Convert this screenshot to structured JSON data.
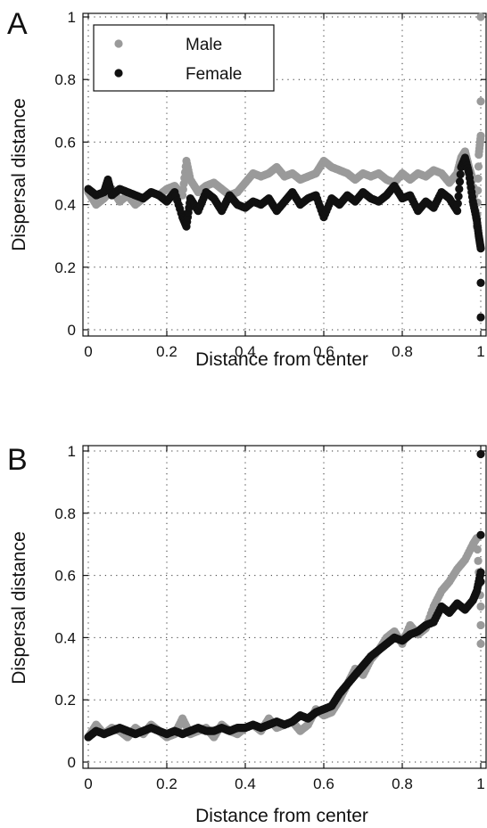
{
  "chart_data": [
    {
      "type": "scatter",
      "panel": "A",
      "xlabel": "Distance from center",
      "ylabel": "Dispersal distance",
      "xlim": [
        0,
        1
      ],
      "ylim": [
        0,
        1
      ],
      "xticks": [
        "0",
        "0.2",
        "0.4",
        "0.6",
        "0.8",
        "1"
      ],
      "yticks": [
        "0",
        "0.2",
        "0.4",
        "0.6",
        "0.8",
        "1"
      ],
      "grid": true,
      "legend_position": "top-left",
      "series": [
        {
          "name": "Male",
          "color": "#9a9a9a",
          "x": [
            0,
            0.02,
            0.04,
            0.06,
            0.08,
            0.1,
            0.12,
            0.14,
            0.16,
            0.18,
            0.2,
            0.22,
            0.24,
            0.25,
            0.26,
            0.28,
            0.3,
            0.32,
            0.34,
            0.36,
            0.38,
            0.4,
            0.42,
            0.44,
            0.46,
            0.48,
            0.5,
            0.52,
            0.54,
            0.56,
            0.58,
            0.6,
            0.62,
            0.64,
            0.66,
            0.68,
            0.7,
            0.72,
            0.74,
            0.76,
            0.78,
            0.8,
            0.82,
            0.84,
            0.86,
            0.88,
            0.9,
            0.92,
            0.94,
            0.95,
            0.96,
            0.97,
            0.98,
            0.99,
            0.995,
            1.0,
            1.0,
            1.0
          ],
          "y": [
            0.44,
            0.4,
            0.42,
            0.45,
            0.41,
            0.43,
            0.4,
            0.42,
            0.44,
            0.43,
            0.45,
            0.46,
            0.43,
            0.54,
            0.48,
            0.44,
            0.46,
            0.47,
            0.45,
            0.43,
            0.44,
            0.47,
            0.5,
            0.49,
            0.5,
            0.52,
            0.49,
            0.5,
            0.48,
            0.49,
            0.5,
            0.54,
            0.52,
            0.51,
            0.5,
            0.48,
            0.5,
            0.49,
            0.5,
            0.48,
            0.47,
            0.5,
            0.48,
            0.5,
            0.49,
            0.51,
            0.5,
            0.47,
            0.5,
            0.55,
            0.57,
            0.52,
            0.48,
            0.33,
            0.56,
            0.62,
            0.73,
            1.0
          ]
        },
        {
          "name": "Female",
          "color": "#111111",
          "x": [
            0,
            0.02,
            0.04,
            0.05,
            0.06,
            0.08,
            0.1,
            0.12,
            0.14,
            0.16,
            0.18,
            0.2,
            0.22,
            0.24,
            0.25,
            0.26,
            0.28,
            0.3,
            0.32,
            0.34,
            0.36,
            0.38,
            0.4,
            0.42,
            0.44,
            0.46,
            0.48,
            0.5,
            0.52,
            0.54,
            0.56,
            0.58,
            0.6,
            0.62,
            0.64,
            0.66,
            0.68,
            0.7,
            0.72,
            0.74,
            0.76,
            0.78,
            0.8,
            0.82,
            0.84,
            0.86,
            0.88,
            0.9,
            0.92,
            0.94,
            0.95,
            0.96,
            0.97,
            0.98,
            0.99,
            0.995,
            1.0,
            1.0,
            1.0
          ],
          "y": [
            0.45,
            0.43,
            0.44,
            0.48,
            0.43,
            0.45,
            0.44,
            0.43,
            0.42,
            0.44,
            0.43,
            0.41,
            0.44,
            0.36,
            0.33,
            0.42,
            0.38,
            0.44,
            0.42,
            0.38,
            0.43,
            0.4,
            0.39,
            0.41,
            0.4,
            0.42,
            0.38,
            0.41,
            0.44,
            0.4,
            0.42,
            0.43,
            0.36,
            0.42,
            0.4,
            0.43,
            0.41,
            0.44,
            0.42,
            0.41,
            0.43,
            0.46,
            0.42,
            0.43,
            0.38,
            0.41,
            0.39,
            0.44,
            0.42,
            0.38,
            0.52,
            0.55,
            0.5,
            0.41,
            0.35,
            0.3,
            0.26,
            0.15,
            0.04
          ]
        }
      ]
    },
    {
      "type": "scatter",
      "panel": "B",
      "xlabel": "Distance from center",
      "ylabel": "Dispersal distance",
      "xlim": [
        0,
        1
      ],
      "ylim": [
        0,
        1
      ],
      "xticks": [
        "0",
        "0.2",
        "0.4",
        "0.6",
        "0.8",
        "1"
      ],
      "yticks": [
        "0",
        "0.2",
        "0.4",
        "0.6",
        "0.8",
        "1"
      ],
      "grid": true,
      "series": [
        {
          "name": "Male",
          "color": "#9a9a9a",
          "x": [
            0,
            0.02,
            0.04,
            0.06,
            0.08,
            0.1,
            0.12,
            0.14,
            0.16,
            0.18,
            0.2,
            0.22,
            0.24,
            0.26,
            0.28,
            0.3,
            0.32,
            0.34,
            0.36,
            0.38,
            0.4,
            0.42,
            0.44,
            0.46,
            0.48,
            0.5,
            0.52,
            0.54,
            0.56,
            0.58,
            0.6,
            0.62,
            0.64,
            0.66,
            0.68,
            0.7,
            0.72,
            0.74,
            0.76,
            0.78,
            0.8,
            0.82,
            0.84,
            0.86,
            0.88,
            0.9,
            0.92,
            0.94,
            0.96,
            0.98,
            0.99,
            1.0,
            1.0,
            1.0
          ],
          "y": [
            0.08,
            0.12,
            0.09,
            0.11,
            0.1,
            0.08,
            0.11,
            0.09,
            0.12,
            0.1,
            0.08,
            0.09,
            0.14,
            0.09,
            0.1,
            0.11,
            0.08,
            0.12,
            0.1,
            0.09,
            0.11,
            0.12,
            0.1,
            0.14,
            0.11,
            0.12,
            0.13,
            0.1,
            0.12,
            0.17,
            0.15,
            0.16,
            0.2,
            0.25,
            0.3,
            0.28,
            0.33,
            0.36,
            0.4,
            0.42,
            0.38,
            0.44,
            0.41,
            0.43,
            0.5,
            0.55,
            0.58,
            0.62,
            0.65,
            0.7,
            0.72,
            0.5,
            0.44,
            0.38
          ]
        },
        {
          "name": "Female",
          "color": "#111111",
          "x": [
            0,
            0.02,
            0.04,
            0.06,
            0.08,
            0.1,
            0.12,
            0.14,
            0.16,
            0.18,
            0.2,
            0.22,
            0.24,
            0.26,
            0.28,
            0.3,
            0.32,
            0.34,
            0.36,
            0.38,
            0.4,
            0.42,
            0.44,
            0.46,
            0.48,
            0.5,
            0.52,
            0.54,
            0.56,
            0.58,
            0.6,
            0.62,
            0.64,
            0.66,
            0.68,
            0.7,
            0.72,
            0.74,
            0.76,
            0.78,
            0.8,
            0.82,
            0.84,
            0.86,
            0.88,
            0.9,
            0.92,
            0.94,
            0.96,
            0.98,
            0.99,
            1.0,
            1.0,
            1.0,
            1.0
          ],
          "y": [
            0.08,
            0.1,
            0.09,
            0.1,
            0.11,
            0.1,
            0.09,
            0.1,
            0.11,
            0.1,
            0.09,
            0.1,
            0.09,
            0.1,
            0.11,
            0.1,
            0.1,
            0.11,
            0.1,
            0.11,
            0.11,
            0.12,
            0.11,
            0.12,
            0.13,
            0.12,
            0.13,
            0.15,
            0.14,
            0.16,
            0.17,
            0.18,
            0.22,
            0.25,
            0.28,
            0.31,
            0.34,
            0.36,
            0.38,
            0.4,
            0.39,
            0.41,
            0.42,
            0.44,
            0.45,
            0.5,
            0.48,
            0.51,
            0.49,
            0.52,
            0.55,
            0.61,
            0.58,
            0.73,
            0.99
          ]
        }
      ]
    }
  ]
}
